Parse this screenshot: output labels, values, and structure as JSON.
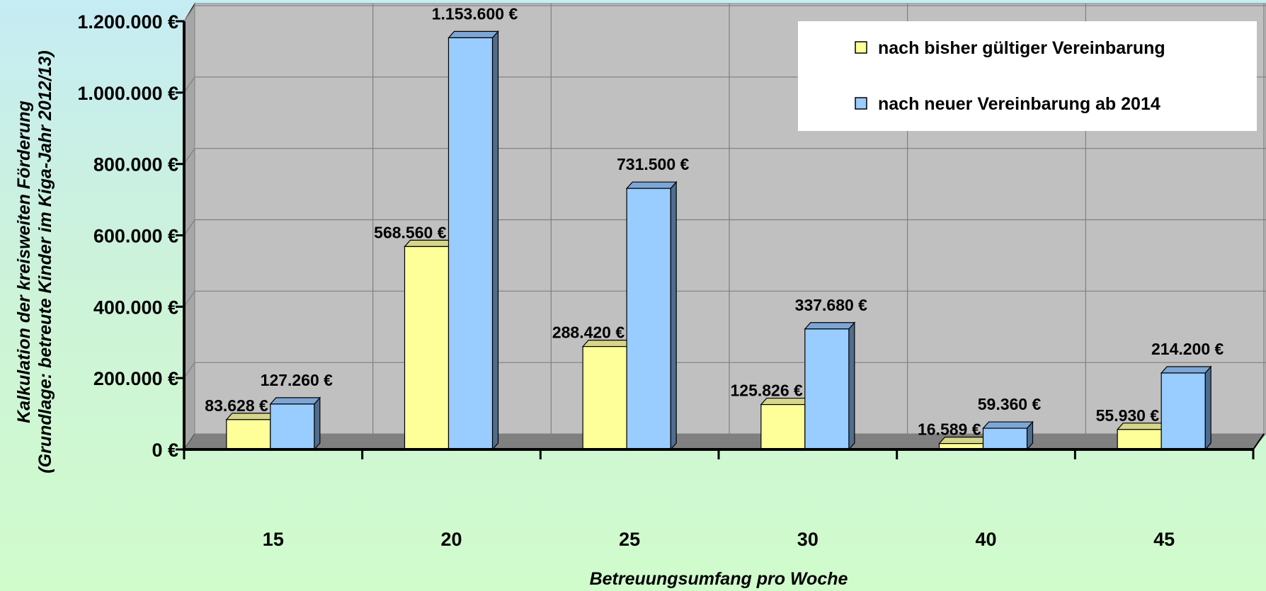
{
  "chart_data": {
    "type": "bar",
    "categories": [
      "15",
      "20",
      "25",
      "30",
      "40",
      "45"
    ],
    "series": [
      {
        "name": "nach bisher gültiger Vereinbarung",
        "values": [
          83628,
          568560,
          288420,
          125826,
          16589,
          55930
        ],
        "labels": [
          "83.628 €",
          "568.560 €",
          "288.420 €",
          "125.826 €",
          "16.589 €",
          "55.930 €"
        ],
        "color": "#ffff99"
      },
      {
        "name": "nach neuer Vereinbarung ab 2014",
        "values": [
          127260,
          1153600,
          731500,
          337680,
          59360,
          214200
        ],
        "labels": [
          "127.260 €",
          "1.153.600 €",
          "731.500 €",
          "337.680 €",
          "59.360 €",
          "214.200 €"
        ],
        "color": "#99ccff"
      }
    ],
    "ylim": [
      0,
      1200000
    ],
    "yticks": [
      0,
      200000,
      400000,
      600000,
      800000,
      1000000,
      1200000
    ],
    "ytick_labels": [
      "0 €",
      "200.000 €",
      "400.000 €",
      "600.000 €",
      "800.000 €",
      "1.000.000 €",
      "1.200.000 €"
    ],
    "xlabel": "Betreuungsumfang pro Woche",
    "ylabel_line1": "Kalkulation der kreisweiten Förderung",
    "ylabel_line2": "(Grundlage: betreute Kinder im Kiga-Jahr 2012/13)",
    "grid": true,
    "legend_position": "top-right",
    "wall_color": "#c0c0c0",
    "floor_color": "#808080"
  }
}
